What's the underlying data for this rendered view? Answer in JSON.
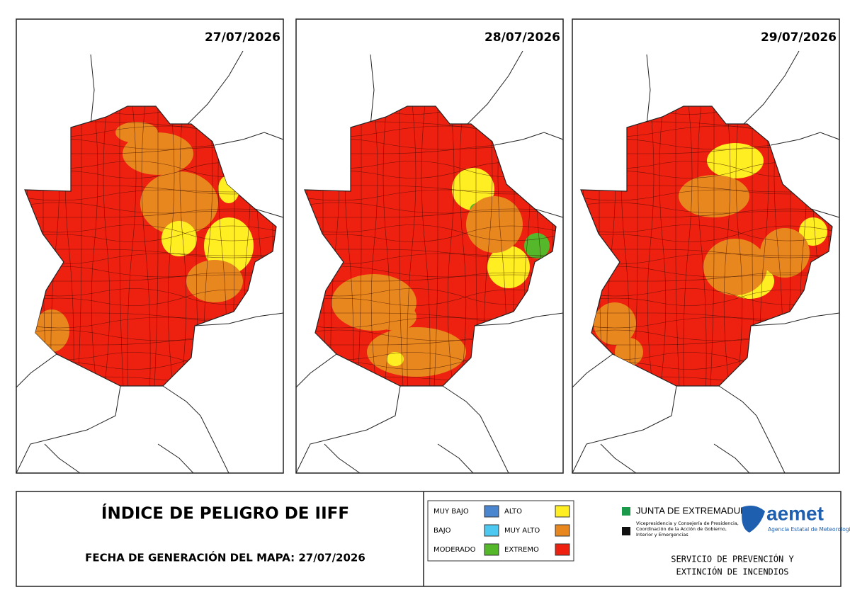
{
  "maps": [
    {
      "date": "27/07/2026"
    },
    {
      "date": "28/07/2026"
    },
    {
      "date": "29/07/2026"
    }
  ],
  "footer": {
    "title": "ÍNDICE DE PELIGRO DE IIFF",
    "generation": "FECHA DE GENERACIÓN DEL MAPA: 27/07/2026"
  },
  "legend": [
    {
      "name": "MUY BAJO",
      "color": "#4a86d0"
    },
    {
      "name": "BAJO",
      "color": "#4dc8f0"
    },
    {
      "name": "MODERADO",
      "color": "#55b82a"
    },
    {
      "name": "ALTO",
      "color": "#ffee22"
    },
    {
      "name": "MUY ALTO",
      "color": "#e8871e"
    },
    {
      "name": "EXTREMO",
      "color": "#ee2010"
    }
  ],
  "logos": {
    "junta": "JUNTA DE EXTREMADURA",
    "junta_lines": [
      "Vicepresidencia y Consejería de Presidencia,",
      "Coordinación de la Acción de Gobierno,",
      "Interior y Emergencias"
    ],
    "aemet": "aemet",
    "aemet_sub": "Agencia Estatal de Meteorología",
    "service": [
      "SERVICIO DE PREVENCIÓN Y",
      "EXTINCIÓN DE INCENDIOS"
    ]
  }
}
